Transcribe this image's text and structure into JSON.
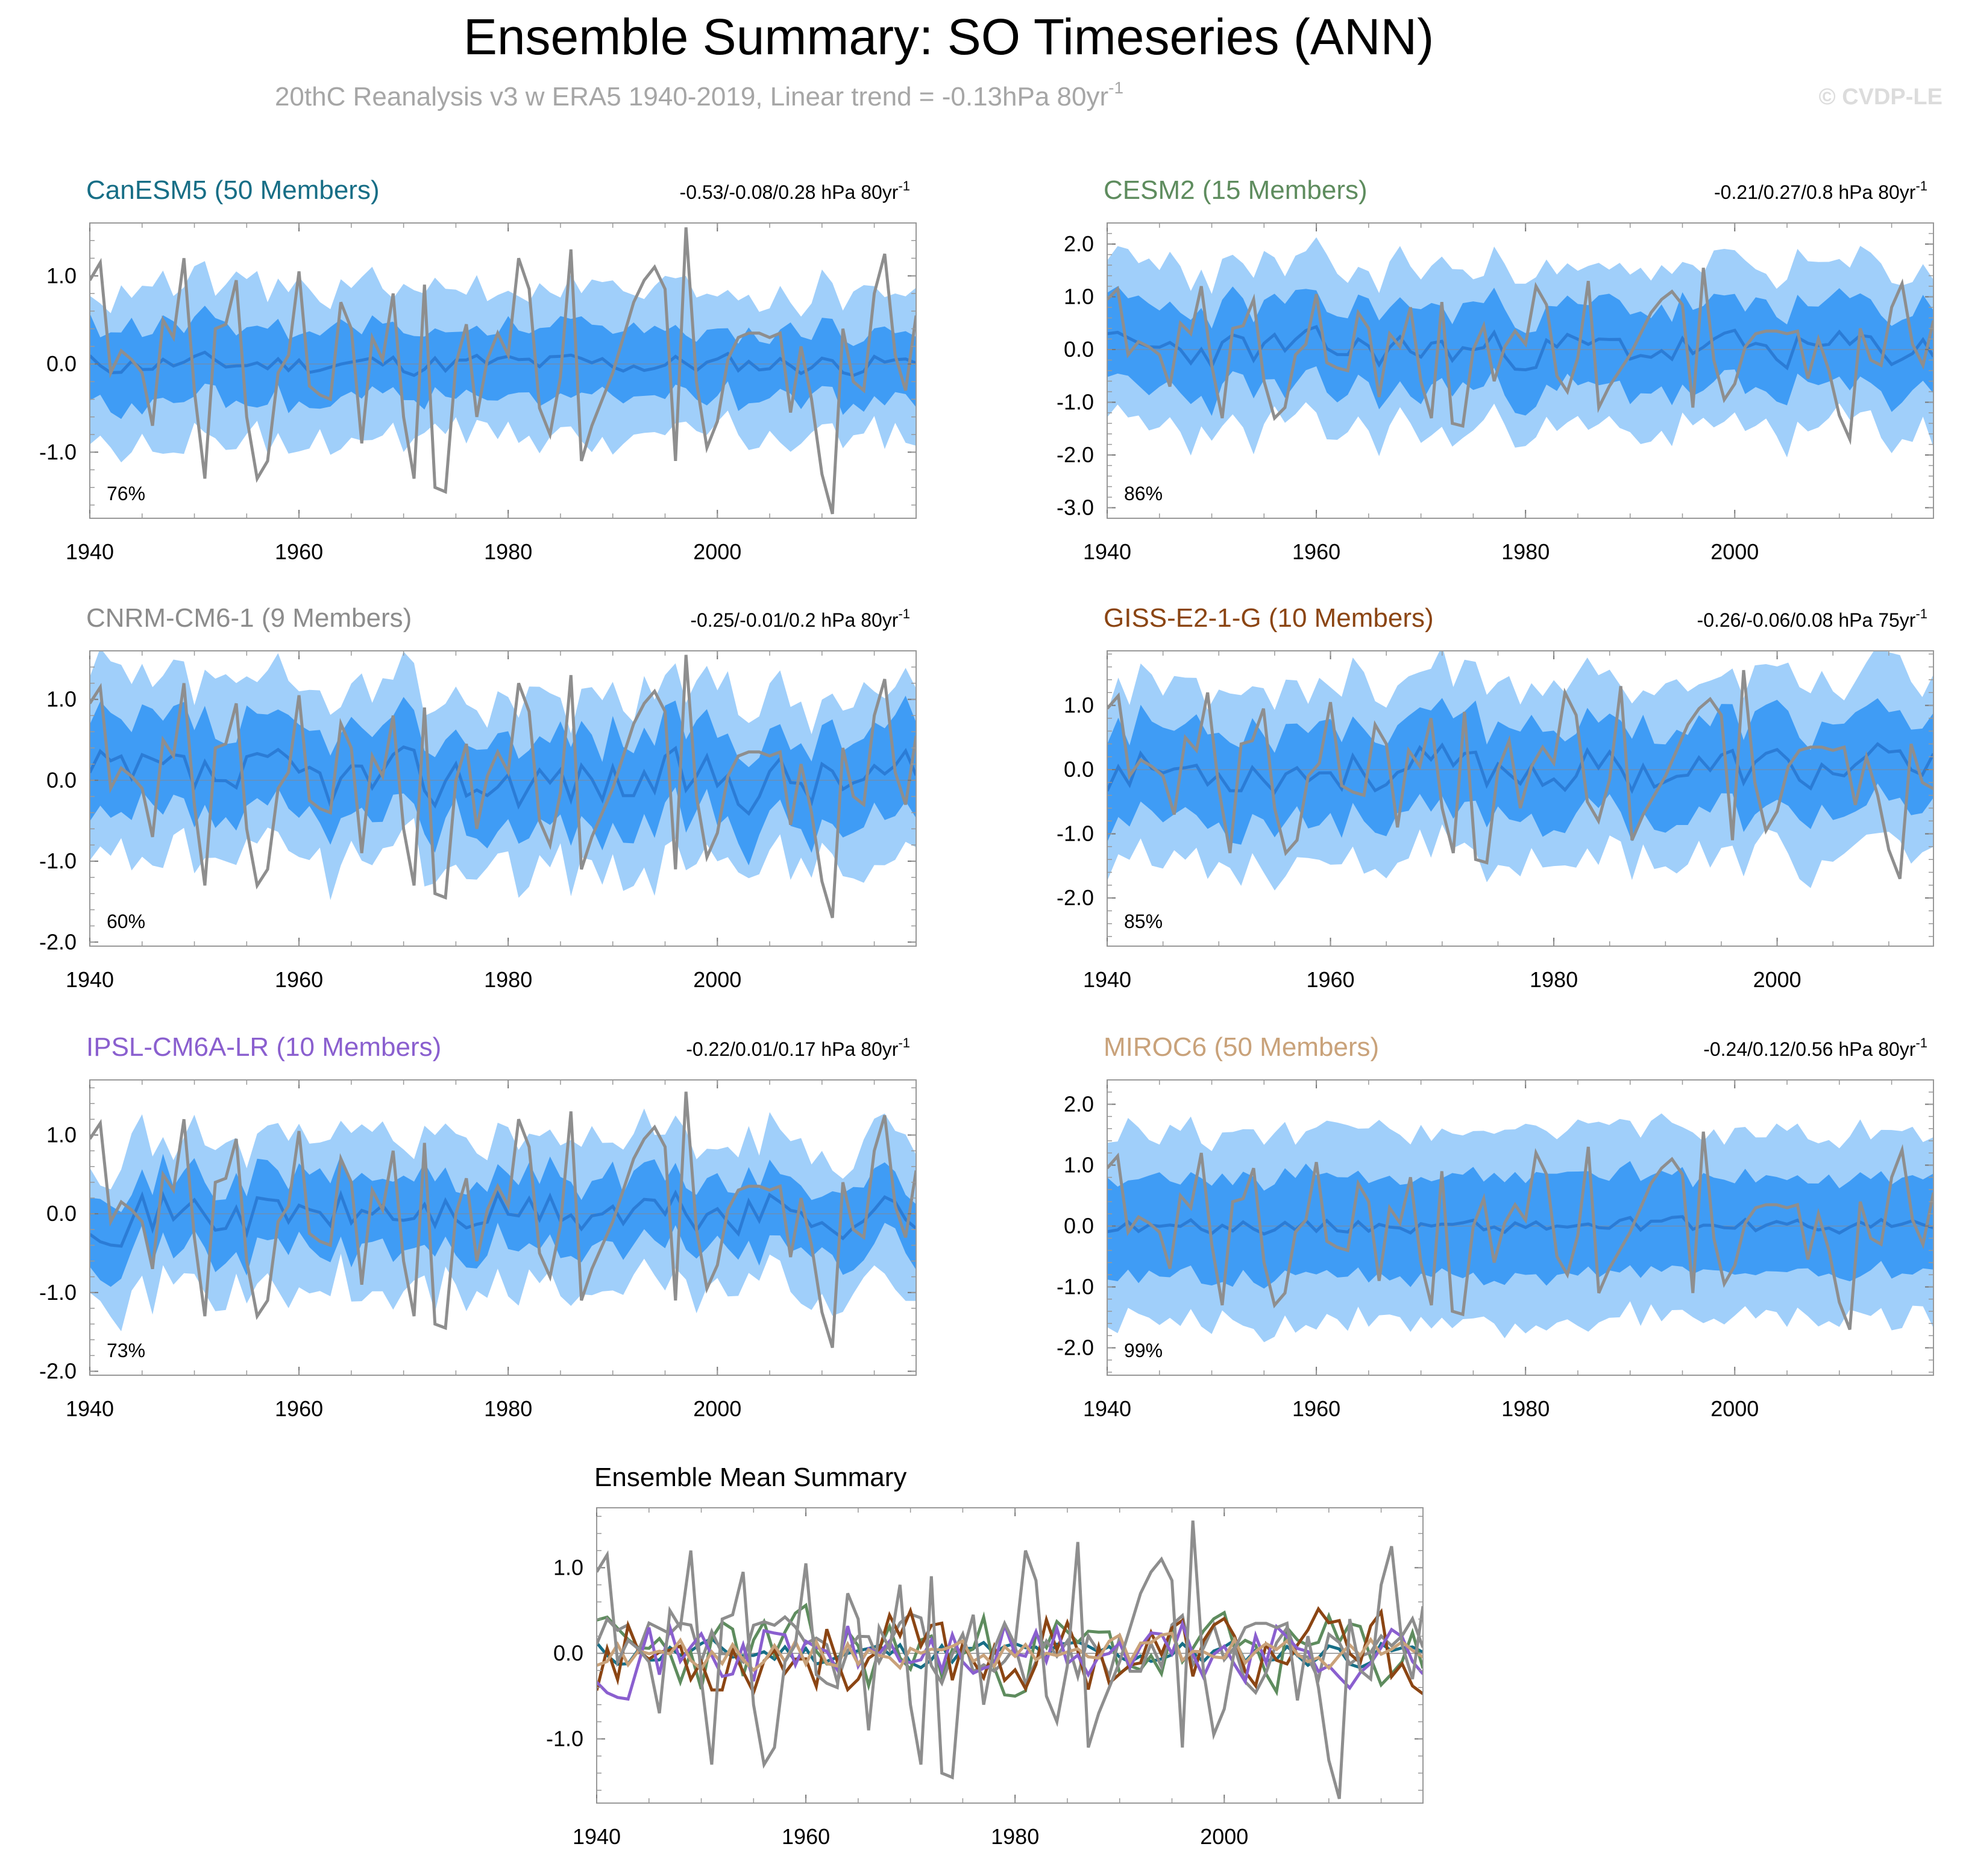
{
  "title": "Ensemble Summary: SO Timeseries (ANN)",
  "subtitle": "20thC Reanalysis v3 w ERA5 1940-2019, Linear trend = -0.13hPa 80yr",
  "subtitle_sup": "-1",
  "watermark": "© CVDP-LE",
  "colors": {
    "band_outer": "#a0cffa",
    "band_inner": "#3f9cf5",
    "ens_mean": "#2b7cd6",
    "obs": "#8e8e8e",
    "frame": "#999999",
    "title": "#000000",
    "subtitle": "#a6a6a6"
  },
  "chart_data": [
    {
      "id": "canesm5",
      "type": "line",
      "title": "CanESM5 (50 Members)",
      "title_color": "#176e86",
      "trend_text": "-0.53/-0.08/0.28 hPa 80yr",
      "trend_sup": "-1",
      "percent": "76%",
      "xlim": [
        1940,
        2019
      ],
      "ylim": [
        -1.75,
        1.6
      ],
      "yticks": [
        -1.0,
        0.0,
        1.0
      ],
      "ytick_labels": [
        "-1.0",
        "0.0",
        "1.0"
      ],
      "xticks": [
        1940,
        1960,
        1980,
        2000
      ],
      "xtick_labels": [
        "1940",
        "1960",
        "1980",
        "2000"
      ],
      "nyears": 80,
      "seed": 11,
      "mean_amp": 0.12,
      "inner": 0.4,
      "outer": 0.85
    },
    {
      "id": "cesm2",
      "type": "line",
      "title": "CESM2 (15 Members)",
      "title_color": "#5e8c5e",
      "trend_text": "-0.21/0.27/0.8 hPa 80yr",
      "trend_sup": "-1",
      "percent": "86%",
      "xlim": [
        1940,
        2019
      ],
      "ylim": [
        -3.2,
        2.4
      ],
      "yticks": [
        -3.0,
        -2.0,
        -1.0,
        0.0,
        1.0,
        2.0
      ],
      "ytick_labels": [
        "-3.0",
        "-2.0",
        "-1.0",
        "0.0",
        "1.0",
        "2.0"
      ],
      "xticks": [
        1940,
        1960,
        1980,
        2000
      ],
      "xtick_labels": [
        "1940",
        "1960",
        "1980",
        "2000"
      ],
      "nyears": 80,
      "seed": 23,
      "mean_amp": 0.35,
      "inner": 0.8,
      "outer": 1.55
    },
    {
      "id": "cnrm",
      "type": "line",
      "title": "CNRM-CM6-1 (9 Members)",
      "title_color": "#8c8c8c",
      "trend_text": "-0.25/-0.01/0.2 hPa 80yr",
      "trend_sup": "-1",
      "percent": "60%",
      "xlim": [
        1940,
        2019
      ],
      "ylim": [
        -2.05,
        1.6
      ],
      "yticks": [
        -2.0,
        -1.0,
        0.0,
        1.0
      ],
      "ytick_labels": [
        "-2.0",
        "-1.0",
        "0.0",
        "1.0"
      ],
      "xticks": [
        1940,
        1960,
        1980,
        2000
      ],
      "xtick_labels": [
        "1940",
        "1960",
        "1980",
        "2000"
      ],
      "nyears": 80,
      "seed": 37,
      "mean_amp": 0.35,
      "inner": 0.55,
      "outer": 1.05
    },
    {
      "id": "giss",
      "type": "line",
      "title": "GISS-E2-1-G (10 Members)",
      "title_color": "#8b4513",
      "trend_text": "-0.26/-0.06/0.08 hPa 75yr",
      "trend_sup": "-1",
      "percent": "85%",
      "xlim": [
        1940,
        2014
      ],
      "ylim": [
        -2.75,
        1.85
      ],
      "yticks": [
        -2.0,
        -1.0,
        0.0,
        1.0
      ],
      "ytick_labels": [
        "-2.0",
        "-1.0",
        "0.0",
        "1.0"
      ],
      "xticks": [
        1940,
        1960,
        1980,
        2000
      ],
      "xtick_labels": [
        "1940",
        "1960",
        "1980",
        "2000"
      ],
      "nyears": 75,
      "seed": 53,
      "mean_amp": 0.35,
      "inner": 0.7,
      "outer": 1.35
    },
    {
      "id": "ipsl",
      "type": "line",
      "title": "IPSL-CM6A-LR (10 Members)",
      "title_color": "#8a5fcf",
      "trend_text": "-0.22/0.01/0.17 hPa 80yr",
      "trend_sup": "-1",
      "percent": "73%",
      "xlim": [
        1940,
        2019
      ],
      "ylim": [
        -2.05,
        1.7
      ],
      "yticks": [
        -2.0,
        -1.0,
        0.0,
        1.0
      ],
      "ytick_labels": [
        "-2.0",
        "-1.0",
        "0.0",
        "1.0"
      ],
      "xticks": [
        1940,
        1960,
        1980,
        2000
      ],
      "xtick_labels": [
        "1940",
        "1960",
        "1980",
        "2000"
      ],
      "nyears": 80,
      "seed": 71,
      "mean_amp": 0.3,
      "inner": 0.45,
      "outer": 0.95
    },
    {
      "id": "miroc6",
      "type": "line",
      "title": "MIROC6 (50 Members)",
      "title_color": "#c9a27a",
      "trend_text": "-0.24/0.12/0.56 hPa 80yr",
      "trend_sup": "-1",
      "percent": "99%",
      "xlim": [
        1940,
        2019
      ],
      "ylim": [
        -2.45,
        2.4
      ],
      "yticks": [
        -2.0,
        -1.0,
        0.0,
        1.0,
        2.0
      ],
      "ytick_labels": [
        "-2.0",
        "-1.0",
        "0.0",
        "1.0",
        "2.0"
      ],
      "xticks": [
        1940,
        1960,
        1980,
        2000
      ],
      "xtick_labels": [
        "1940",
        "1960",
        "1980",
        "2000"
      ],
      "nyears": 80,
      "seed": 89,
      "mean_amp": 0.12,
      "inner": 0.8,
      "outer": 1.55
    },
    {
      "id": "summary",
      "type": "line",
      "title": "Ensemble Mean Summary",
      "title_color": "#000000",
      "xlim": [
        1940,
        2019
      ],
      "ylim": [
        -1.75,
        1.7
      ],
      "yticks": [
        -1.0,
        0.0,
        1.0
      ],
      "ytick_labels": [
        "-1.0",
        "0.0",
        "1.0"
      ],
      "xticks": [
        1940,
        1960,
        1980,
        2000
      ],
      "xtick_labels": [
        "1940",
        "1960",
        "1980",
        "2000"
      ],
      "series": [
        {
          "name": "CanESM5",
          "color": "#176e86",
          "seed": 11,
          "amp": 0.12
        },
        {
          "name": "CESM2",
          "color": "#5e8c5e",
          "seed": 23,
          "amp": 0.35
        },
        {
          "name": "CNRM-CM6-1",
          "color": "#8c8c8c",
          "seed": 37,
          "amp": 0.3
        },
        {
          "name": "GISS-E2-1-G",
          "color": "#8b4513",
          "seed": 53,
          "amp": 0.35
        },
        {
          "name": "IPSL-CM6A-LR",
          "color": "#8a5fcf",
          "seed": 71,
          "amp": 0.3
        },
        {
          "name": "MIROC6",
          "color": "#c9a27a",
          "seed": 89,
          "amp": 0.14
        }
      ]
    }
  ],
  "observed": {
    "name": "20thC Reanalysis v3 w ERA5",
    "start_year": 1940,
    "values": [
      0.95,
      1.15,
      -0.1,
      0.15,
      0.05,
      -0.1,
      -0.7,
      0.5,
      0.3,
      1.2,
      -0.3,
      -1.3,
      0.4,
      0.45,
      0.95,
      -0.6,
      -1.3,
      -1.1,
      -0.1,
      0.1,
      1.05,
      -0.25,
      -0.35,
      -0.4,
      0.7,
      0.4,
      -0.9,
      0.3,
      0.05,
      0.8,
      -0.6,
      -1.3,
      0.9,
      -1.4,
      -1.45,
      0.0,
      0.45,
      -0.6,
      0.05,
      0.35,
      0.1,
      1.2,
      0.85,
      -0.5,
      -0.8,
      -0.15,
      1.3,
      -1.1,
      -0.7,
      -0.4,
      -0.1,
      0.3,
      0.7,
      0.95,
      1.1,
      0.85,
      -1.1,
      1.55,
      -0.2,
      -0.95,
      -0.65,
      0.05,
      0.3,
      0.35,
      0.35,
      0.3,
      0.35,
      -0.55,
      0.2,
      -0.4,
      -1.25,
      -1.7,
      0.4,
      -0.2,
      -0.3,
      0.8,
      1.25,
      0.1,
      -0.3,
      0.55
    ]
  }
}
